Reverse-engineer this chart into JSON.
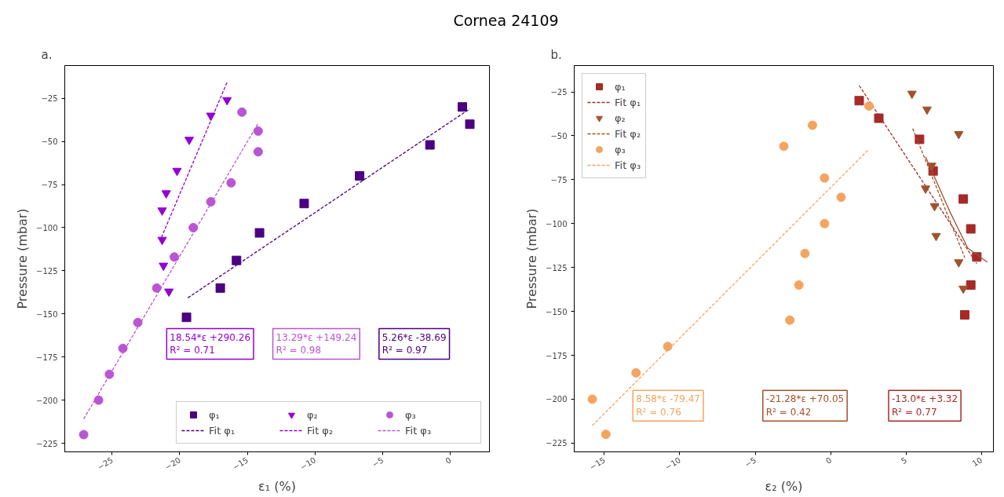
{
  "chart_data": [
    {
      "type": "scatter",
      "title": "Cornea 24109",
      "subtitle": "a.",
      "xlabel": "ε₁ (%)",
      "ylabel": "Pressure (mbar)",
      "grid": false,
      "legend": "bottom right",
      "xlim": [
        -28.5,
        2.9
      ],
      "ylim": [
        -230,
        -6
      ],
      "xticks": [
        {
          "value": -25,
          "label": "−25"
        },
        {
          "value": -20,
          "label": "−20"
        },
        {
          "value": -15,
          "label": "−15"
        },
        {
          "value": -10,
          "label": "−10"
        },
        {
          "value": -5,
          "label": "−5"
        },
        0
      ],
      "yticks": [
        {
          "value": -25,
          "label": "−25"
        },
        {
          "value": -50,
          "label": "−50"
        },
        {
          "value": -75,
          "label": "−75"
        },
        {
          "value": -100,
          "label": "−100"
        },
        {
          "value": -125,
          "label": "−125"
        },
        {
          "value": -150,
          "label": "−150"
        },
        {
          "value": -175,
          "label": "−175"
        },
        {
          "value": -200,
          "label": "−200"
        },
        {
          "value": -225,
          "label": "−225"
        }
      ],
      "series": [
        {
          "name": "φ₁",
          "marker": "square",
          "color": "#4b0082",
          "x": [
            -19.5,
            -17.0,
            -15.8,
            -14.1,
            -10.8,
            -6.7,
            -1.5,
            0.9,
            1.45
          ],
          "values": [
            -152,
            -135,
            -119,
            -103,
            -86,
            -70,
            -52,
            -30,
            -40
          ]
        },
        {
          "name": "Fit φ₁",
          "type": "line",
          "line_style": "dashed",
          "color": "#4b0082",
          "x": [
            -19.4,
            1.45
          ],
          "values": [
            -140.7,
            -31.1
          ]
        },
        {
          "name": "φ₂",
          "marker": "triangle",
          "color": "#9400d3",
          "x": [
            -16.5,
            -17.7,
            -19.3,
            -20.2,
            -21.0,
            -21.3,
            -21.3,
            -21.2,
            -20.8
          ],
          "values": [
            -26,
            -35,
            -49,
            -67,
            -80,
            -90,
            -107,
            -122,
            -137
          ]
        },
        {
          "name": "Fit φ₂",
          "type": "line",
          "line_style": "dashed",
          "color": "#9400d3",
          "x": [
            -21.35,
            -16.5
          ],
          "values": [
            -105.6,
            -15.7
          ]
        },
        {
          "name": "φ₃",
          "marker": "circle",
          "color": "#ba55d3",
          "x": [
            -27.1,
            -26.0,
            -25.2,
            -24.2,
            -23.1,
            -21.7,
            -20.4,
            -19.0,
            -17.7,
            -16.2,
            -14.2,
            -14.2,
            -15.4
          ],
          "values": [
            -220,
            -200,
            -185,
            -170,
            -155,
            -135,
            -117,
            -100,
            -85,
            -74,
            -56,
            -44,
            -33
          ]
        },
        {
          "name": "Fit φ₃",
          "type": "line",
          "line_style": "dashed",
          "color": "#ba55d3",
          "x": [
            -27.1,
            -14.2
          ],
          "values": [
            -210.9,
            -39.5
          ]
        }
      ],
      "annotations": [
        "18.54*ε +290.26\nR² = 0.71",
        "13.29*ε +149.24\nR² = 0.98",
        "5.26*ε -38.69\nR² = 0.97"
      ]
    },
    {
      "type": "scatter",
      "subtitle": "b.",
      "xlabel": "ε₂ (%)",
      "ylabel": "Pressure (mbar)",
      "grid": false,
      "legend": "top left",
      "xlim": [
        -17.0,
        10.8
      ],
      "ylim": [
        -230,
        -10
      ],
      "xticks": [
        {
          "value": -15,
          "label": "−15"
        },
        {
          "value": -10,
          "label": "−10"
        },
        {
          "value": -5,
          "label": "−5"
        },
        0,
        5,
        10
      ],
      "yticks": [
        {
          "value": -25,
          "label": "−25"
        },
        {
          "value": -50,
          "label": "−50"
        },
        {
          "value": -75,
          "label": "−75"
        },
        {
          "value": -100,
          "label": "−100"
        },
        {
          "value": -125,
          "label": "−125"
        },
        {
          "value": -150,
          "label": "−150"
        },
        {
          "value": -175,
          "label": "−175"
        },
        {
          "value": -200,
          "label": "−200"
        },
        {
          "value": -225,
          "label": "−225"
        }
      ],
      "series": [
        {
          "name": "φ₁",
          "marker": "square",
          "color": "#a52a2a",
          "x": [
            1.9,
            3.2,
            5.9,
            6.8,
            8.8,
            9.3,
            9.7,
            9.3,
            8.9
          ],
          "values": [
            -30,
            -40,
            -52,
            -70,
            -86,
            -103,
            -119,
            -135,
            -152
          ]
        },
        {
          "name": "Fit φ₁",
          "type": "line",
          "line_style": "dashed",
          "color": "#a52a2a",
          "x": [
            1.9,
            9.7
          ],
          "values": [
            -21.4,
            -122.8
          ]
        },
        {
          "name": "φ₂",
          "marker": "triangle",
          "color": "#a0522d",
          "x": [
            5.4,
            6.4,
            8.5,
            6.7,
            6.3,
            6.9,
            7.0,
            8.5,
            8.8
          ],
          "values": [
            -26,
            -35,
            -49,
            -67,
            -80,
            -90,
            -107,
            -122,
            -137
          ]
        },
        {
          "name": "Fit φ₂",
          "type": "line",
          "line_style": "dashed",
          "color": "#a0522d",
          "x": [
            5.45,
            8.9
          ],
          "values": [
            -45.9,
            -119.3
          ]
        },
        {
          "name": "φ₃",
          "marker": "circle",
          "color": "#f4a460",
          "x": [
            -15.8,
            -14.9,
            -12.9,
            -10.8,
            -3.1,
            -2.1,
            -2.7,
            -1.2,
            -0.4,
            0.7,
            -0.4,
            -1.7,
            2.55
          ],
          "values": [
            -200,
            -220,
            -185,
            -170,
            -56,
            -135,
            -155,
            -44,
            -74,
            -85,
            -100,
            -117,
            -33
          ]
        },
        {
          "name": "Fit φ₃",
          "type": "line",
          "line_style": "dashed",
          "color": "#f4a460",
          "x": [
            -15.8,
            2.55
          ],
          "values": [
            -215.0,
            -57.6
          ]
        },
        {
          "type": "line",
          "line_style": "solid",
          "color": "#a0522d",
          "x": [
            6.3,
            7.9,
            9.1,
            10.4
          ],
          "values": [
            -62,
            -93,
            -114,
            -122
          ]
        }
      ],
      "annotations": [
        "8.58*ε -79.47\nR² = 0.76",
        "-21.28*ε +70.05\nR² = 0.42",
        "-13.0*ε +3.32\nR² = 0.77"
      ]
    }
  ]
}
